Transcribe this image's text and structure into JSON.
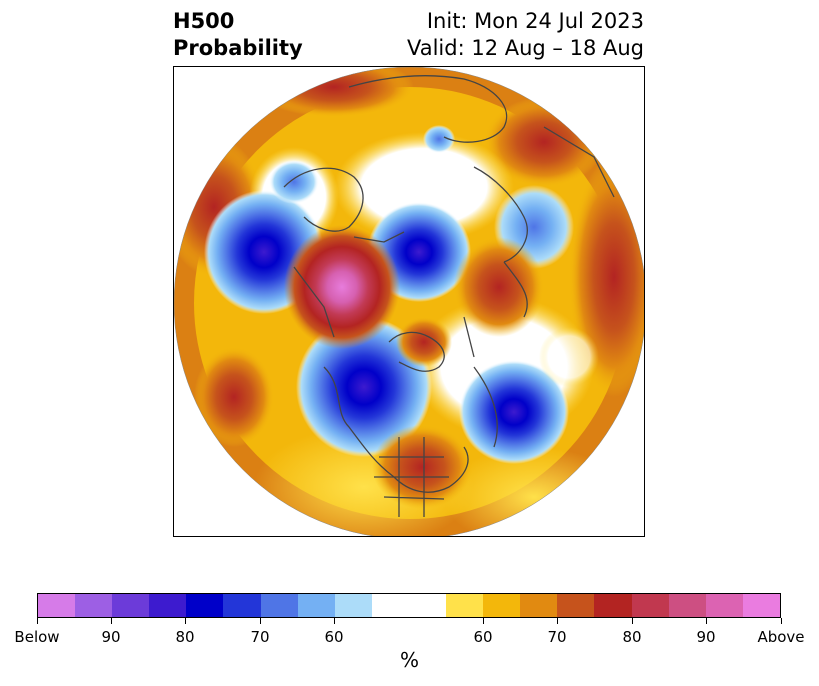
{
  "title": {
    "left_line1": "H500",
    "left_line2": "Probability",
    "right_line1": "Init: Mon 24 Jul 2023",
    "right_line2": "Valid: 12 Aug – 18 Aug"
  },
  "map": {
    "projection": "north polar stereographic",
    "features": [
      {
        "kind": "above",
        "level": 90,
        "desc": "central Canada / Hudson Bay region"
      },
      {
        "kind": "below",
        "level": 80,
        "desc": "North Pacific / Alaska region"
      },
      {
        "kind": "below",
        "level": 80,
        "desc": "western Canada"
      },
      {
        "kind": "below",
        "level": 80,
        "desc": "Siberia"
      },
      {
        "kind": "below",
        "level": 70,
        "desc": "North Atlantic"
      },
      {
        "kind": "above",
        "level": 75,
        "desc": "eastern United States"
      },
      {
        "kind": "above",
        "level": 75,
        "desc": "Central Asia"
      }
    ]
  },
  "colorbar": {
    "colors": [
      "#d67be8",
      "#9d5fe4",
      "#6c3bd9",
      "#3d1bcf",
      "#0000c9",
      "#2336d8",
      "#4f75e6",
      "#74b0f3",
      "#acdcf9",
      "#ffffff",
      "#ffffff",
      "#ffe14a",
      "#f3b70b",
      "#e18a11",
      "#c6531c",
      "#b32422",
      "#c1384f",
      "#cd4f82",
      "#dc63b2",
      "#ea7ce0"
    ],
    "tick_labels": [
      "Below",
      "90",
      "80",
      "70",
      "60",
      "60",
      "70",
      "80",
      "90",
      "Above"
    ],
    "unit_label": "%"
  }
}
